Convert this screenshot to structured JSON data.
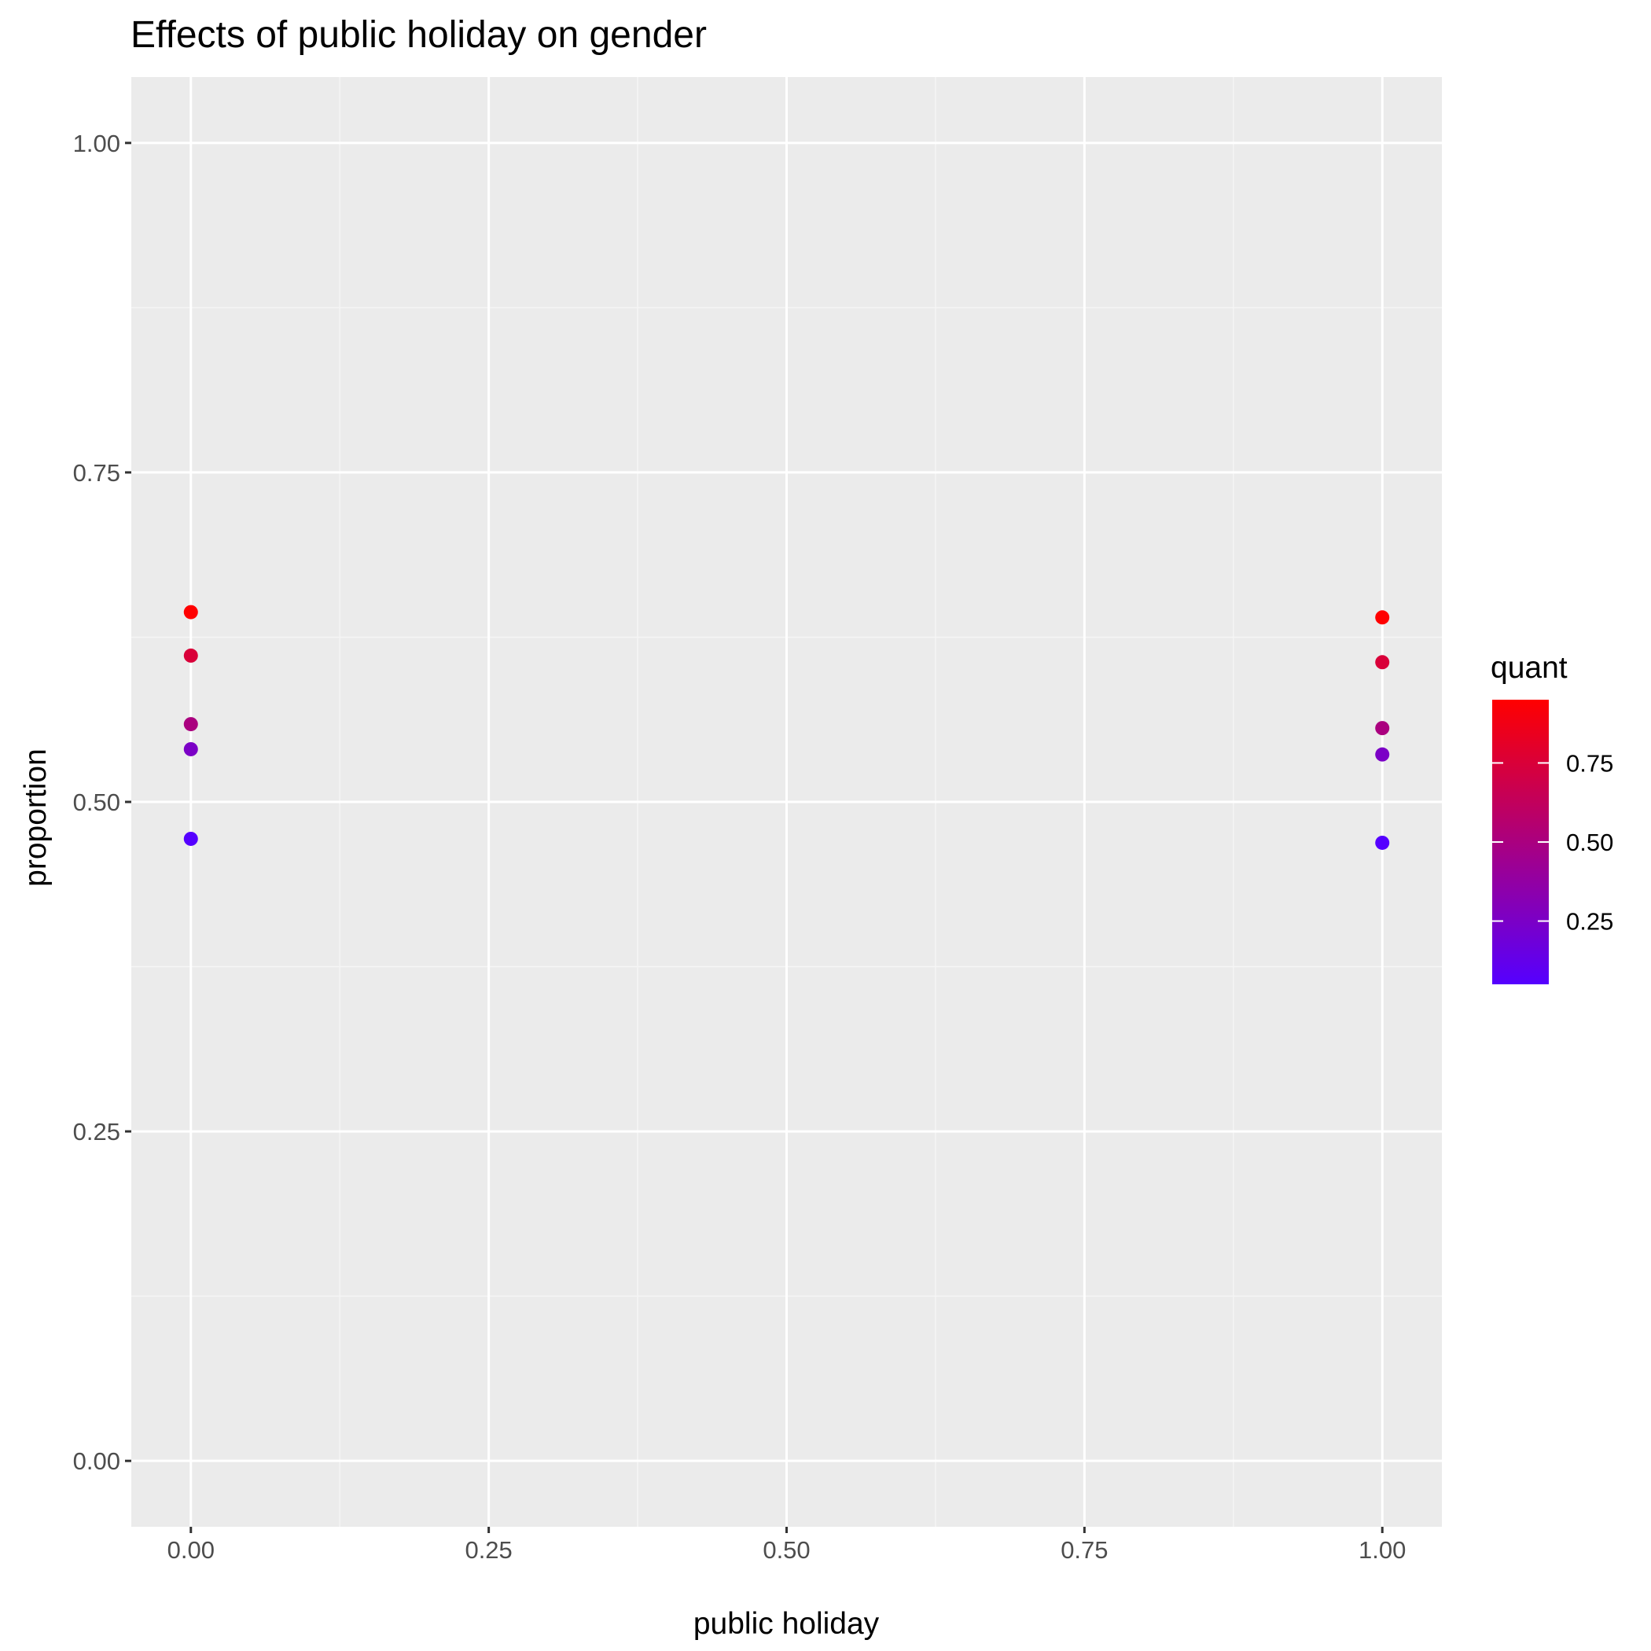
{
  "chart_data": {
    "type": "scatter",
    "title": "Effects of public holiday on gender",
    "xlabel": "public holiday",
    "ylabel": "proportion",
    "xlim": [
      -0.05,
      1.05
    ],
    "ylim": [
      -0.05,
      1.05
    ],
    "x_ticks": [
      0,
      0.25,
      0.5,
      0.75,
      1
    ],
    "x_tick_labels": [
      "0.00",
      "0.25",
      "0.50",
      "0.75",
      "1.00"
    ],
    "y_ticks": [
      0,
      0.25,
      0.5,
      0.75,
      1
    ],
    "y_tick_labels": [
      "0.00",
      "0.25",
      "0.50",
      "0.75",
      "1.00"
    ],
    "grid": true,
    "points": [
      {
        "x": 0,
        "y": 0.644,
        "quant": 0.95
      },
      {
        "x": 0,
        "y": 0.611,
        "quant": 0.75
      },
      {
        "x": 0,
        "y": 0.559,
        "quant": 0.5
      },
      {
        "x": 0,
        "y": 0.54,
        "quant": 0.25
      },
      {
        "x": 0,
        "y": 0.472,
        "quant": 0.05
      },
      {
        "x": 1,
        "y": 0.64,
        "quant": 0.95
      },
      {
        "x": 1,
        "y": 0.606,
        "quant": 0.75
      },
      {
        "x": 1,
        "y": 0.556,
        "quant": 0.5
      },
      {
        "x": 1,
        "y": 0.536,
        "quant": 0.25
      },
      {
        "x": 1,
        "y": 0.469,
        "quant": 0.05
      }
    ],
    "color_scale": {
      "title": "quant",
      "low_color": "#5500ff",
      "high_color": "#ff0000",
      "range": [
        0.05,
        0.95
      ],
      "breaks": [
        0.25,
        0.5,
        0.75
      ],
      "break_labels": [
        "0.25",
        "0.50",
        "0.75"
      ],
      "legend_position": "right"
    },
    "colors": {
      "panel_background": "#ebebeb",
      "grid_major": "#ffffff",
      "grid_minor": "#f5f5f5"
    }
  }
}
